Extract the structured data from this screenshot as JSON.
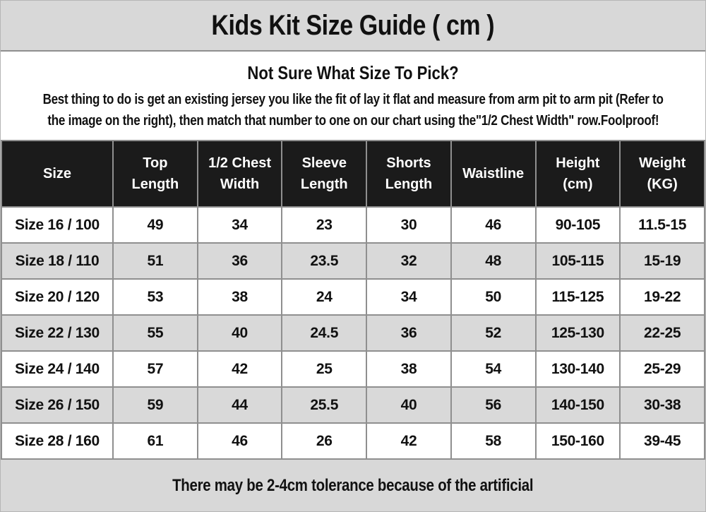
{
  "title": "Kids Kit Size Guide ( cm )",
  "intro": {
    "heading": "Not Sure What Size To Pick?",
    "body_line1": "Best thing to do is get an existing jersey you like the fit of lay it flat and measure from arm pit to arm pit (Refer to",
    "body_line2": "the image on the right), then match that number to one on our chart using the\"1/2 Chest Width\" row.Foolproof!"
  },
  "table": {
    "columns": [
      "Size",
      "Top Length",
      "1/2 Chest Width",
      "Sleeve Length",
      "Shorts Length",
      "Waistline",
      "Height (cm)",
      "Weight (KG)"
    ],
    "rows": [
      [
        "Size 16 / 100",
        "49",
        "34",
        "23",
        "30",
        "46",
        "90-105",
        "11.5-15"
      ],
      [
        "Size 18 / 110",
        "51",
        "36",
        "23.5",
        "32",
        "48",
        "105-115",
        "15-19"
      ],
      [
        "Size 20 / 120",
        "53",
        "38",
        "24",
        "34",
        "50",
        "115-125",
        "19-22"
      ],
      [
        "Size 22 / 130",
        "55",
        "40",
        "24.5",
        "36",
        "52",
        "125-130",
        "22-25"
      ],
      [
        "Size 24 / 140",
        "57",
        "42",
        "25",
        "38",
        "54",
        "130-140",
        "25-29"
      ],
      [
        "Size 26 / 150",
        "59",
        "44",
        "25.5",
        "40",
        "56",
        "140-150",
        "30-38"
      ],
      [
        "Size 28 / 160",
        "61",
        "46",
        "26",
        "42",
        "58",
        "150-160",
        "39-45"
      ]
    ]
  },
  "footer_note": "There may be 2-4cm tolerance because of the artificial",
  "colors": {
    "header_bg": "#1b1b1b",
    "band_gray": "#d8d8d8",
    "row_alt_gray": "#d9d9d9",
    "border_gray": "#8f8f8f",
    "text_black": "#111111"
  }
}
